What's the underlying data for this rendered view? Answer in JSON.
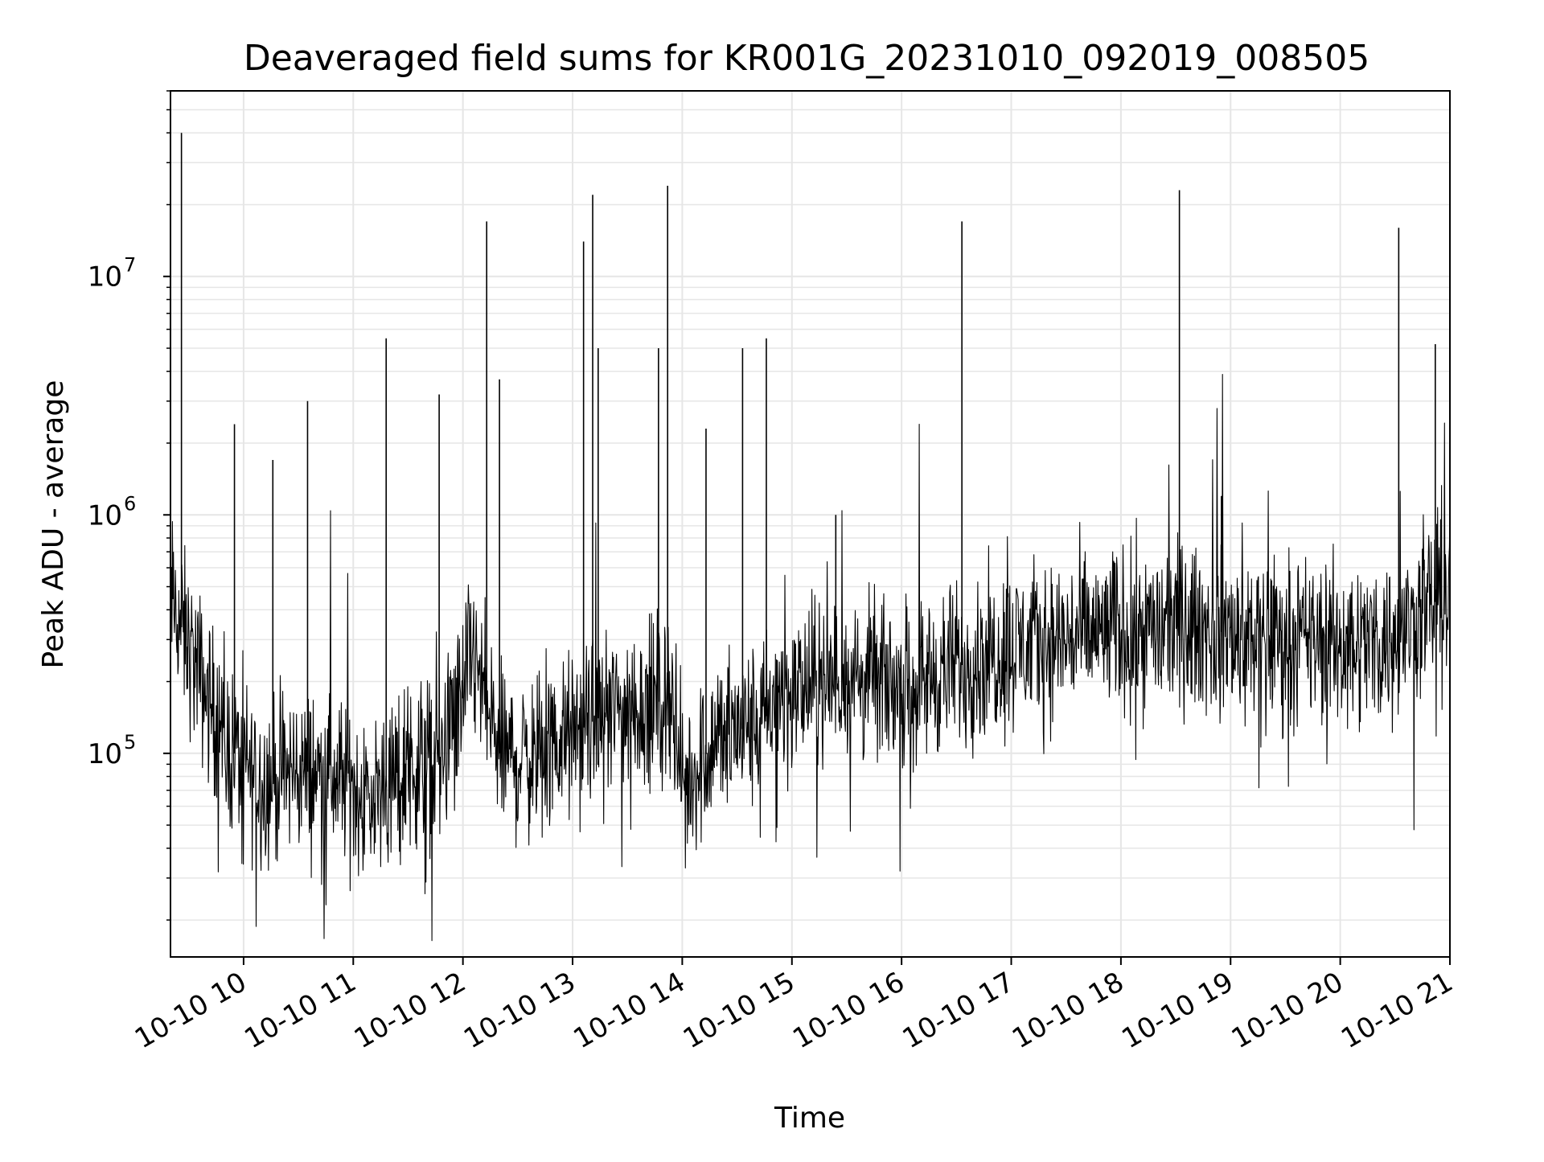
{
  "chart_data": {
    "type": "line",
    "title": "Deaveraged field sums for KR001G_20231010_092019_008505",
    "xlabel": "Time",
    "ylabel": "Peak ADU - average",
    "yscale": "log",
    "ylim": [
      14000,
      60000000
    ],
    "xlim": [
      "2023-10-10 09:20",
      "2023-10-10 21:00"
    ],
    "grid": true,
    "x_ticks": [
      {
        "t": "2023-10-10 10:00",
        "label": "10-10 10"
      },
      {
        "t": "2023-10-10 11:00",
        "label": "10-10 11"
      },
      {
        "t": "2023-10-10 12:00",
        "label": "10-10 12"
      },
      {
        "t": "2023-10-10 13:00",
        "label": "10-10 13"
      },
      {
        "t": "2023-10-10 14:00",
        "label": "10-10 14"
      },
      {
        "t": "2023-10-10 15:00",
        "label": "10-10 15"
      },
      {
        "t": "2023-10-10 16:00",
        "label": "10-10 16"
      },
      {
        "t": "2023-10-10 17:00",
        "label": "10-10 17"
      },
      {
        "t": "2023-10-10 18:00",
        "label": "10-10 18"
      },
      {
        "t": "2023-10-10 19:00",
        "label": "10-10 19"
      },
      {
        "t": "2023-10-10 20:00",
        "label": "10-10 20"
      },
      {
        "t": "2023-10-10 21:00",
        "label": "10-10 21"
      }
    ],
    "y_ticks": [
      {
        "value": 100000,
        "base": "10",
        "exp": "5"
      },
      {
        "value": 1000000,
        "base": "10",
        "exp": "6"
      },
      {
        "value": 10000000,
        "base": "10",
        "exp": "7"
      }
    ],
    "series": [
      {
        "color": "#000000",
        "baseline": [
          {
            "t": "2023-10-10 09:20",
            "y": 450000
          },
          {
            "t": "2023-10-10 09:35",
            "y": 220000
          },
          {
            "t": "2023-10-10 09:50",
            "y": 110000
          },
          {
            "t": "2023-10-10 10:10",
            "y": 75000
          },
          {
            "t": "2023-10-10 10:30",
            "y": 85000
          },
          {
            "t": "2023-10-10 10:50",
            "y": 80000
          },
          {
            "t": "2023-10-10 11:10",
            "y": 65000
          },
          {
            "t": "2023-10-10 11:30",
            "y": 85000
          },
          {
            "t": "2023-10-10 11:50",
            "y": 100000
          },
          {
            "t": "2023-10-10 12:05",
            "y": 260000
          },
          {
            "t": "2023-10-10 12:20",
            "y": 100000
          },
          {
            "t": "2023-10-10 12:40",
            "y": 95000
          },
          {
            "t": "2023-10-10 13:00",
            "y": 120000
          },
          {
            "t": "2023-10-10 13:20",
            "y": 150000
          },
          {
            "t": "2023-10-10 13:40",
            "y": 160000
          },
          {
            "t": "2023-10-10 13:55",
            "y": 170000
          },
          {
            "t": "2023-10-10 14:00",
            "y": 70000
          },
          {
            "t": "2023-10-10 14:20",
            "y": 120000
          },
          {
            "t": "2023-10-10 14:40",
            "y": 130000
          },
          {
            "t": "2023-10-10 15:00",
            "y": 180000
          },
          {
            "t": "2023-10-10 15:30",
            "y": 210000
          },
          {
            "t": "2023-10-10 16:00",
            "y": 190000
          },
          {
            "t": "2023-10-10 16:30",
            "y": 230000
          },
          {
            "t": "2023-10-10 17:00",
            "y": 280000
          },
          {
            "t": "2023-10-10 17:30",
            "y": 300000
          },
          {
            "t": "2023-10-10 18:00",
            "y": 330000
          },
          {
            "t": "2023-10-10 18:30",
            "y": 340000
          },
          {
            "t": "2023-10-10 19:00",
            "y": 320000
          },
          {
            "t": "2023-10-10 19:30",
            "y": 300000
          },
          {
            "t": "2023-10-10 20:00",
            "y": 290000
          },
          {
            "t": "2023-10-10 20:30",
            "y": 300000
          },
          {
            "t": "2023-10-10 21:00",
            "y": 500000
          }
        ],
        "spikes": [
          {
            "t": "2023-10-10 09:26",
            "y": 40000000
          },
          {
            "t": "2023-10-10 09:55",
            "y": 2400000
          },
          {
            "t": "2023-10-10 10:16",
            "y": 1700000
          },
          {
            "t": "2023-10-10 10:35",
            "y": 3000000
          },
          {
            "t": "2023-10-10 11:18",
            "y": 5500000
          },
          {
            "t": "2023-10-10 11:47",
            "y": 3200000
          },
          {
            "t": "2023-10-10 12:13",
            "y": 17000000
          },
          {
            "t": "2023-10-10 12:20",
            "y": 3700000
          },
          {
            "t": "2023-10-10 13:06",
            "y": 14000000
          },
          {
            "t": "2023-10-10 13:11",
            "y": 22000000
          },
          {
            "t": "2023-10-10 13:14",
            "y": 5000000
          },
          {
            "t": "2023-10-10 13:47",
            "y": 5000000
          },
          {
            "t": "2023-10-10 13:52",
            "y": 24000000
          },
          {
            "t": "2023-10-10 14:13",
            "y": 2300000
          },
          {
            "t": "2023-10-10 14:33",
            "y": 5000000
          },
          {
            "t": "2023-10-10 14:46",
            "y": 5500000
          },
          {
            "t": "2023-10-10 15:24",
            "y": 1000000
          },
          {
            "t": "2023-10-10 16:33",
            "y": 17000000
          },
          {
            "t": "2023-10-10 18:32",
            "y": 23000000
          },
          {
            "t": "2023-10-10 18:55",
            "y": 1200000
          },
          {
            "t": "2023-10-10 20:32",
            "y": 16000000
          },
          {
            "t": "2023-10-10 20:52",
            "y": 5200000
          }
        ]
      }
    ]
  }
}
